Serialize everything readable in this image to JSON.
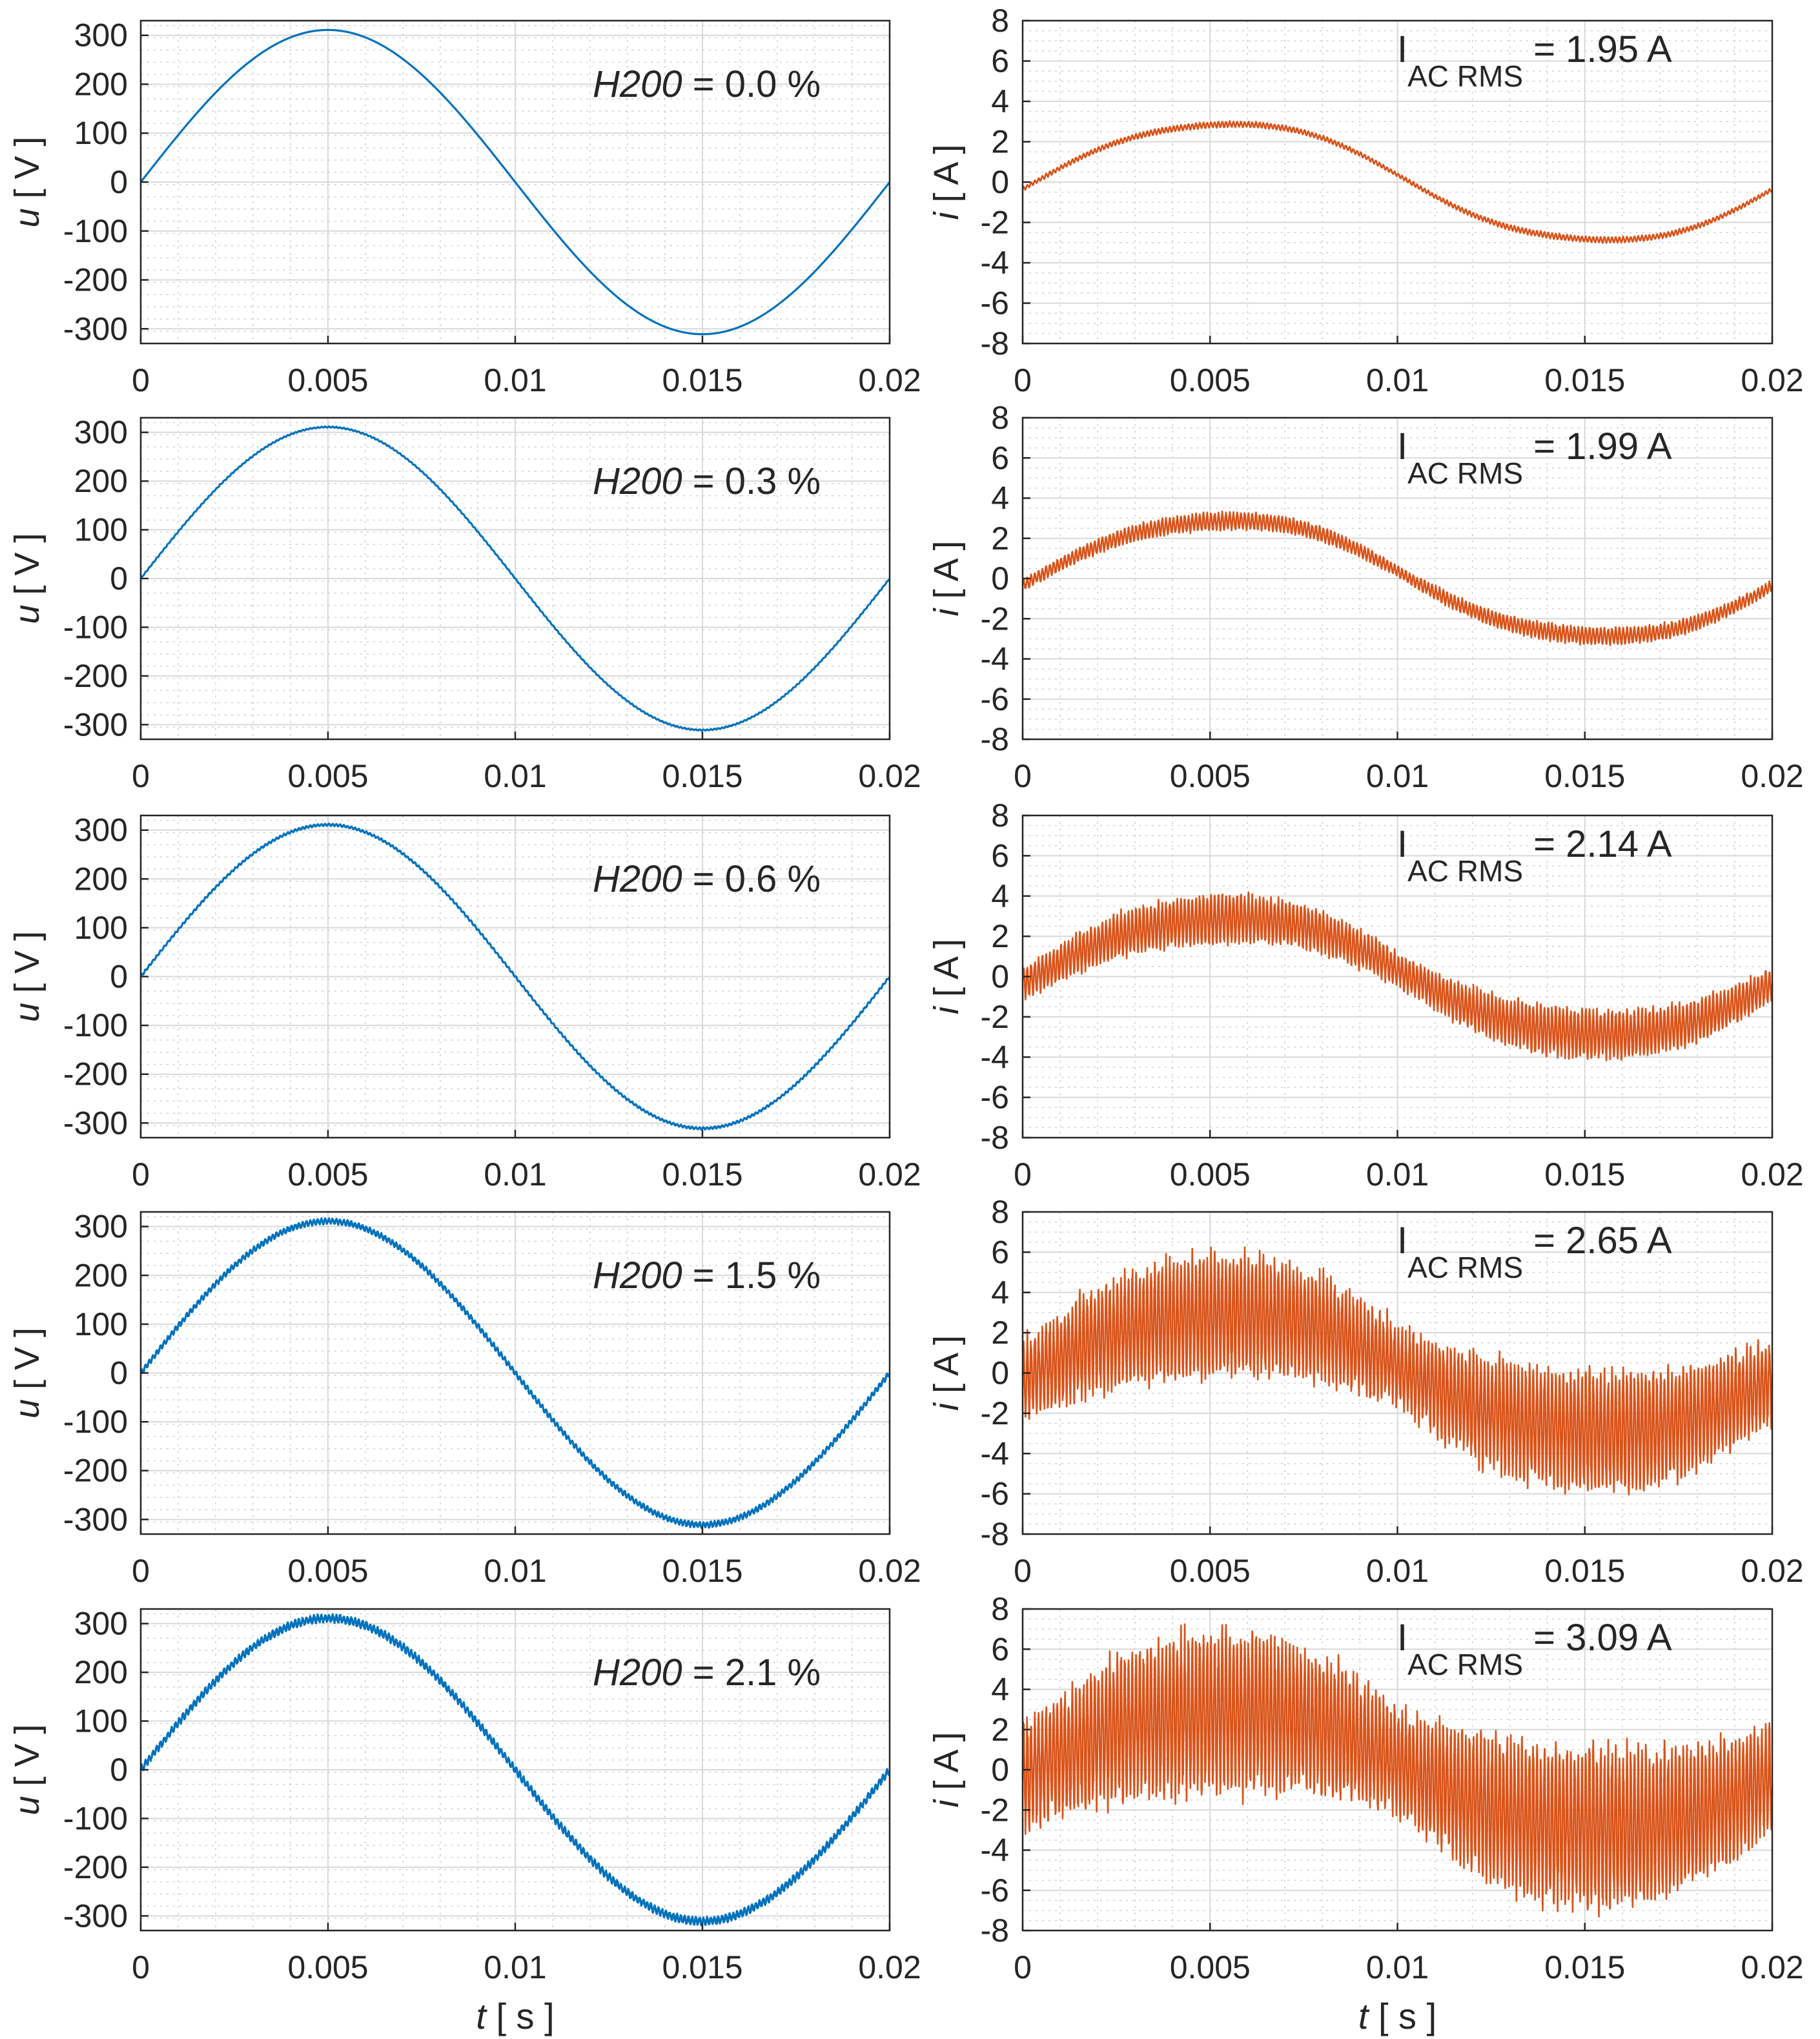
{
  "colors": {
    "voltage": "#0072BD",
    "current": "#D95319",
    "axis": "#262626",
    "grid": "#d9d9d9"
  },
  "chart_data": [
    {
      "type": "line",
      "panel": "voltage",
      "row": 1,
      "annotation_italic": "H200",
      "annotation_value": " = 0.0 %",
      "ylabel_var": "u",
      "ylabel_unit": "[ V ]",
      "xlabel_var": "",
      "xlabel_unit": "",
      "ylim": [
        -330,
        330
      ],
      "yticks": [
        -300,
        -200,
        -100,
        0,
        100,
        200,
        300
      ],
      "ytick_labels": [
        "-300",
        "-200",
        "-100",
        "0",
        "100",
        "200",
        "300"
      ],
      "xlim": [
        0,
        0.02
      ],
      "xtick_labels": [
        "0",
        "0.005",
        "0.01",
        "0.015",
        "0.02"
      ],
      "series": [
        {
          "name": "u",
          "amplitude": 311,
          "frequency_hz": 50,
          "ripple_amplitude": 0
        }
      ]
    },
    {
      "type": "line",
      "panel": "current",
      "row": 1,
      "annotation_main": "I",
      "annotation_sub": "AC RMS",
      "annotation_value": " = 1.95 A",
      "ylabel_var": "i",
      "ylabel_unit": "[ A ]",
      "xlabel_var": "",
      "xlabel_unit": "",
      "ylim": [
        -8,
        8
      ],
      "yticks": [
        -8,
        -6,
        -4,
        -2,
        0,
        2,
        4,
        6,
        8
      ],
      "ytick_labels": [
        "-8",
        "-6",
        "-4",
        "-2",
        "0",
        "2",
        "4",
        "6",
        "8"
      ],
      "xlim": [
        0,
        0.02
      ],
      "xtick_labels": [
        "0",
        "0.005",
        "0.01",
        "0.015",
        "0.02"
      ],
      "series": [
        {
          "name": "i",
          "amplitude": 3.0,
          "frequency_hz": 50,
          "ripple_amplitude": 0.15
        }
      ]
    },
    {
      "type": "line",
      "panel": "voltage",
      "row": 2,
      "annotation_italic": "H200",
      "annotation_value": " = 0.3 %",
      "ylabel_var": "u",
      "ylabel_unit": "[ V ]",
      "xlabel_var": "",
      "xlabel_unit": "",
      "ylim": [
        -330,
        330
      ],
      "yticks": [
        -300,
        -200,
        -100,
        0,
        100,
        200,
        300
      ],
      "ytick_labels": [
        "-300",
        "-200",
        "-100",
        "0",
        "100",
        "200",
        "300"
      ],
      "xlim": [
        0,
        0.02
      ],
      "xtick_labels": [
        "0",
        "0.005",
        "0.01",
        "0.015",
        "0.02"
      ],
      "series": [
        {
          "name": "u",
          "amplitude": 311,
          "frequency_hz": 50,
          "ripple_amplitude": 1
        }
      ]
    },
    {
      "type": "line",
      "panel": "current",
      "row": 2,
      "annotation_main": "I",
      "annotation_sub": "AC RMS",
      "annotation_value": " = 1.99 A",
      "ylabel_var": "i",
      "ylabel_unit": "[ A ]",
      "xlabel_var": "",
      "xlabel_unit": "",
      "ylim": [
        -8,
        8
      ],
      "yticks": [
        -8,
        -6,
        -4,
        -2,
        0,
        2,
        4,
        6,
        8
      ],
      "ytick_labels": [
        "-8",
        "-6",
        "-4",
        "-2",
        "0",
        "2",
        "4",
        "6",
        "8"
      ],
      "xlim": [
        0,
        0.02
      ],
      "xtick_labels": [
        "0",
        "0.005",
        "0.01",
        "0.015",
        "0.02"
      ],
      "series": [
        {
          "name": "i",
          "amplitude": 3.0,
          "frequency_hz": 50,
          "ripple_amplitude": 0.45
        }
      ]
    },
    {
      "type": "line",
      "panel": "voltage",
      "row": 3,
      "annotation_italic": "H200",
      "annotation_value": " = 0.6 %",
      "ylabel_var": "u",
      "ylabel_unit": "[ V ]",
      "xlabel_var": "",
      "xlabel_unit": "",
      "ylim": [
        -330,
        330
      ],
      "yticks": [
        -300,
        -200,
        -100,
        0,
        100,
        200,
        300
      ],
      "ytick_labels": [
        "-300",
        "-200",
        "-100",
        "0",
        "100",
        "200",
        "300"
      ],
      "xlim": [
        0,
        0.02
      ],
      "xtick_labels": [
        "0",
        "0.005",
        "0.01",
        "0.015",
        "0.02"
      ],
      "series": [
        {
          "name": "u",
          "amplitude": 311,
          "frequency_hz": 50,
          "ripple_amplitude": 2
        }
      ]
    },
    {
      "type": "line",
      "panel": "current",
      "row": 3,
      "annotation_main": "I",
      "annotation_sub": "AC RMS",
      "annotation_value": " = 2.14 A",
      "ylabel_var": "i",
      "ylabel_unit": "[ A ]",
      "xlabel_var": "",
      "xlabel_unit": "",
      "ylim": [
        -8,
        8
      ],
      "yticks": [
        -8,
        -6,
        -4,
        -2,
        0,
        2,
        4,
        6,
        8
      ],
      "ytick_labels": [
        "-8",
        "-6",
        "-4",
        "-2",
        "0",
        "2",
        "4",
        "6",
        "8"
      ],
      "xlim": [
        0,
        0.02
      ],
      "xtick_labels": [
        "0",
        "0.005",
        "0.01",
        "0.015",
        "0.02"
      ],
      "series": [
        {
          "name": "i",
          "amplitude": 3.0,
          "frequency_hz": 50,
          "ripple_amplitude": 1.3
        }
      ]
    },
    {
      "type": "line",
      "panel": "voltage",
      "row": 4,
      "annotation_italic": "H200",
      "annotation_value": " = 1.5 %",
      "ylabel_var": "u",
      "ylabel_unit": "[ V ]",
      "xlabel_var": "",
      "xlabel_unit": "",
      "ylim": [
        -330,
        330
      ],
      "yticks": [
        -300,
        -200,
        -100,
        0,
        100,
        200,
        300
      ],
      "ytick_labels": [
        "-300",
        "-200",
        "-100",
        "0",
        "100",
        "200",
        "300"
      ],
      "xlim": [
        0,
        0.02
      ],
      "xtick_labels": [
        "0",
        "0.005",
        "0.01",
        "0.015",
        "0.02"
      ],
      "series": [
        {
          "name": "u",
          "amplitude": 311,
          "frequency_hz": 50,
          "ripple_amplitude": 5
        }
      ]
    },
    {
      "type": "line",
      "panel": "current",
      "row": 4,
      "annotation_main": "I",
      "annotation_sub": "AC RMS",
      "annotation_value": " = 2.65 A",
      "ylabel_var": "i",
      "ylabel_unit": "[ A ]",
      "xlabel_var": "",
      "xlabel_unit": "",
      "ylim": [
        -8,
        8
      ],
      "yticks": [
        -8,
        -6,
        -4,
        -2,
        0,
        2,
        4,
        6,
        8
      ],
      "ytick_labels": [
        "-8",
        "-6",
        "-4",
        "-2",
        "0",
        "2",
        "4",
        "6",
        "8"
      ],
      "xlim": [
        0,
        0.02
      ],
      "xtick_labels": [
        "0",
        "0.005",
        "0.01",
        "0.015",
        "0.02"
      ],
      "series": [
        {
          "name": "i",
          "amplitude": 3.0,
          "frequency_hz": 50,
          "ripple_amplitude": 3.2
        }
      ]
    },
    {
      "type": "line",
      "panel": "voltage",
      "row": 5,
      "annotation_italic": "H200",
      "annotation_value": " = 2.1 %",
      "ylabel_var": "u",
      "ylabel_unit": "[ V ]",
      "xlabel_var": "t",
      "xlabel_unit": "[ s ]",
      "ylim": [
        -330,
        330
      ],
      "yticks": [
        -300,
        -200,
        -100,
        0,
        100,
        200,
        300
      ],
      "ytick_labels": [
        "-300",
        "-200",
        "-100",
        "0",
        "100",
        "200",
        "300"
      ],
      "xlim": [
        0,
        0.02
      ],
      "xtick_labels": [
        "0",
        "0.005",
        "0.01",
        "0.015",
        "0.02"
      ],
      "series": [
        {
          "name": "u",
          "amplitude": 311,
          "frequency_hz": 50,
          "ripple_amplitude": 7
        }
      ]
    },
    {
      "type": "line",
      "panel": "current",
      "row": 5,
      "annotation_main": "I",
      "annotation_sub": "AC RMS",
      "annotation_value": " = 3.09 A",
      "ylabel_var": "i",
      "ylabel_unit": "[ A ]",
      "xlabel_var": "t",
      "xlabel_unit": "[ s ]",
      "ylim": [
        -8,
        8
      ],
      "yticks": [
        -8,
        -6,
        -4,
        -2,
        0,
        2,
        4,
        6,
        8
      ],
      "ytick_labels": [
        "-8",
        "-6",
        "-4",
        "-2",
        "0",
        "2",
        "4",
        "6",
        "8"
      ],
      "xlim": [
        0,
        0.02
      ],
      "xtick_labels": [
        "0",
        "0.005",
        "0.01",
        "0.015",
        "0.02"
      ],
      "series": [
        {
          "name": "i",
          "amplitude": 3.0,
          "frequency_hz": 50,
          "ripple_amplitude": 4.2
        }
      ]
    }
  ]
}
